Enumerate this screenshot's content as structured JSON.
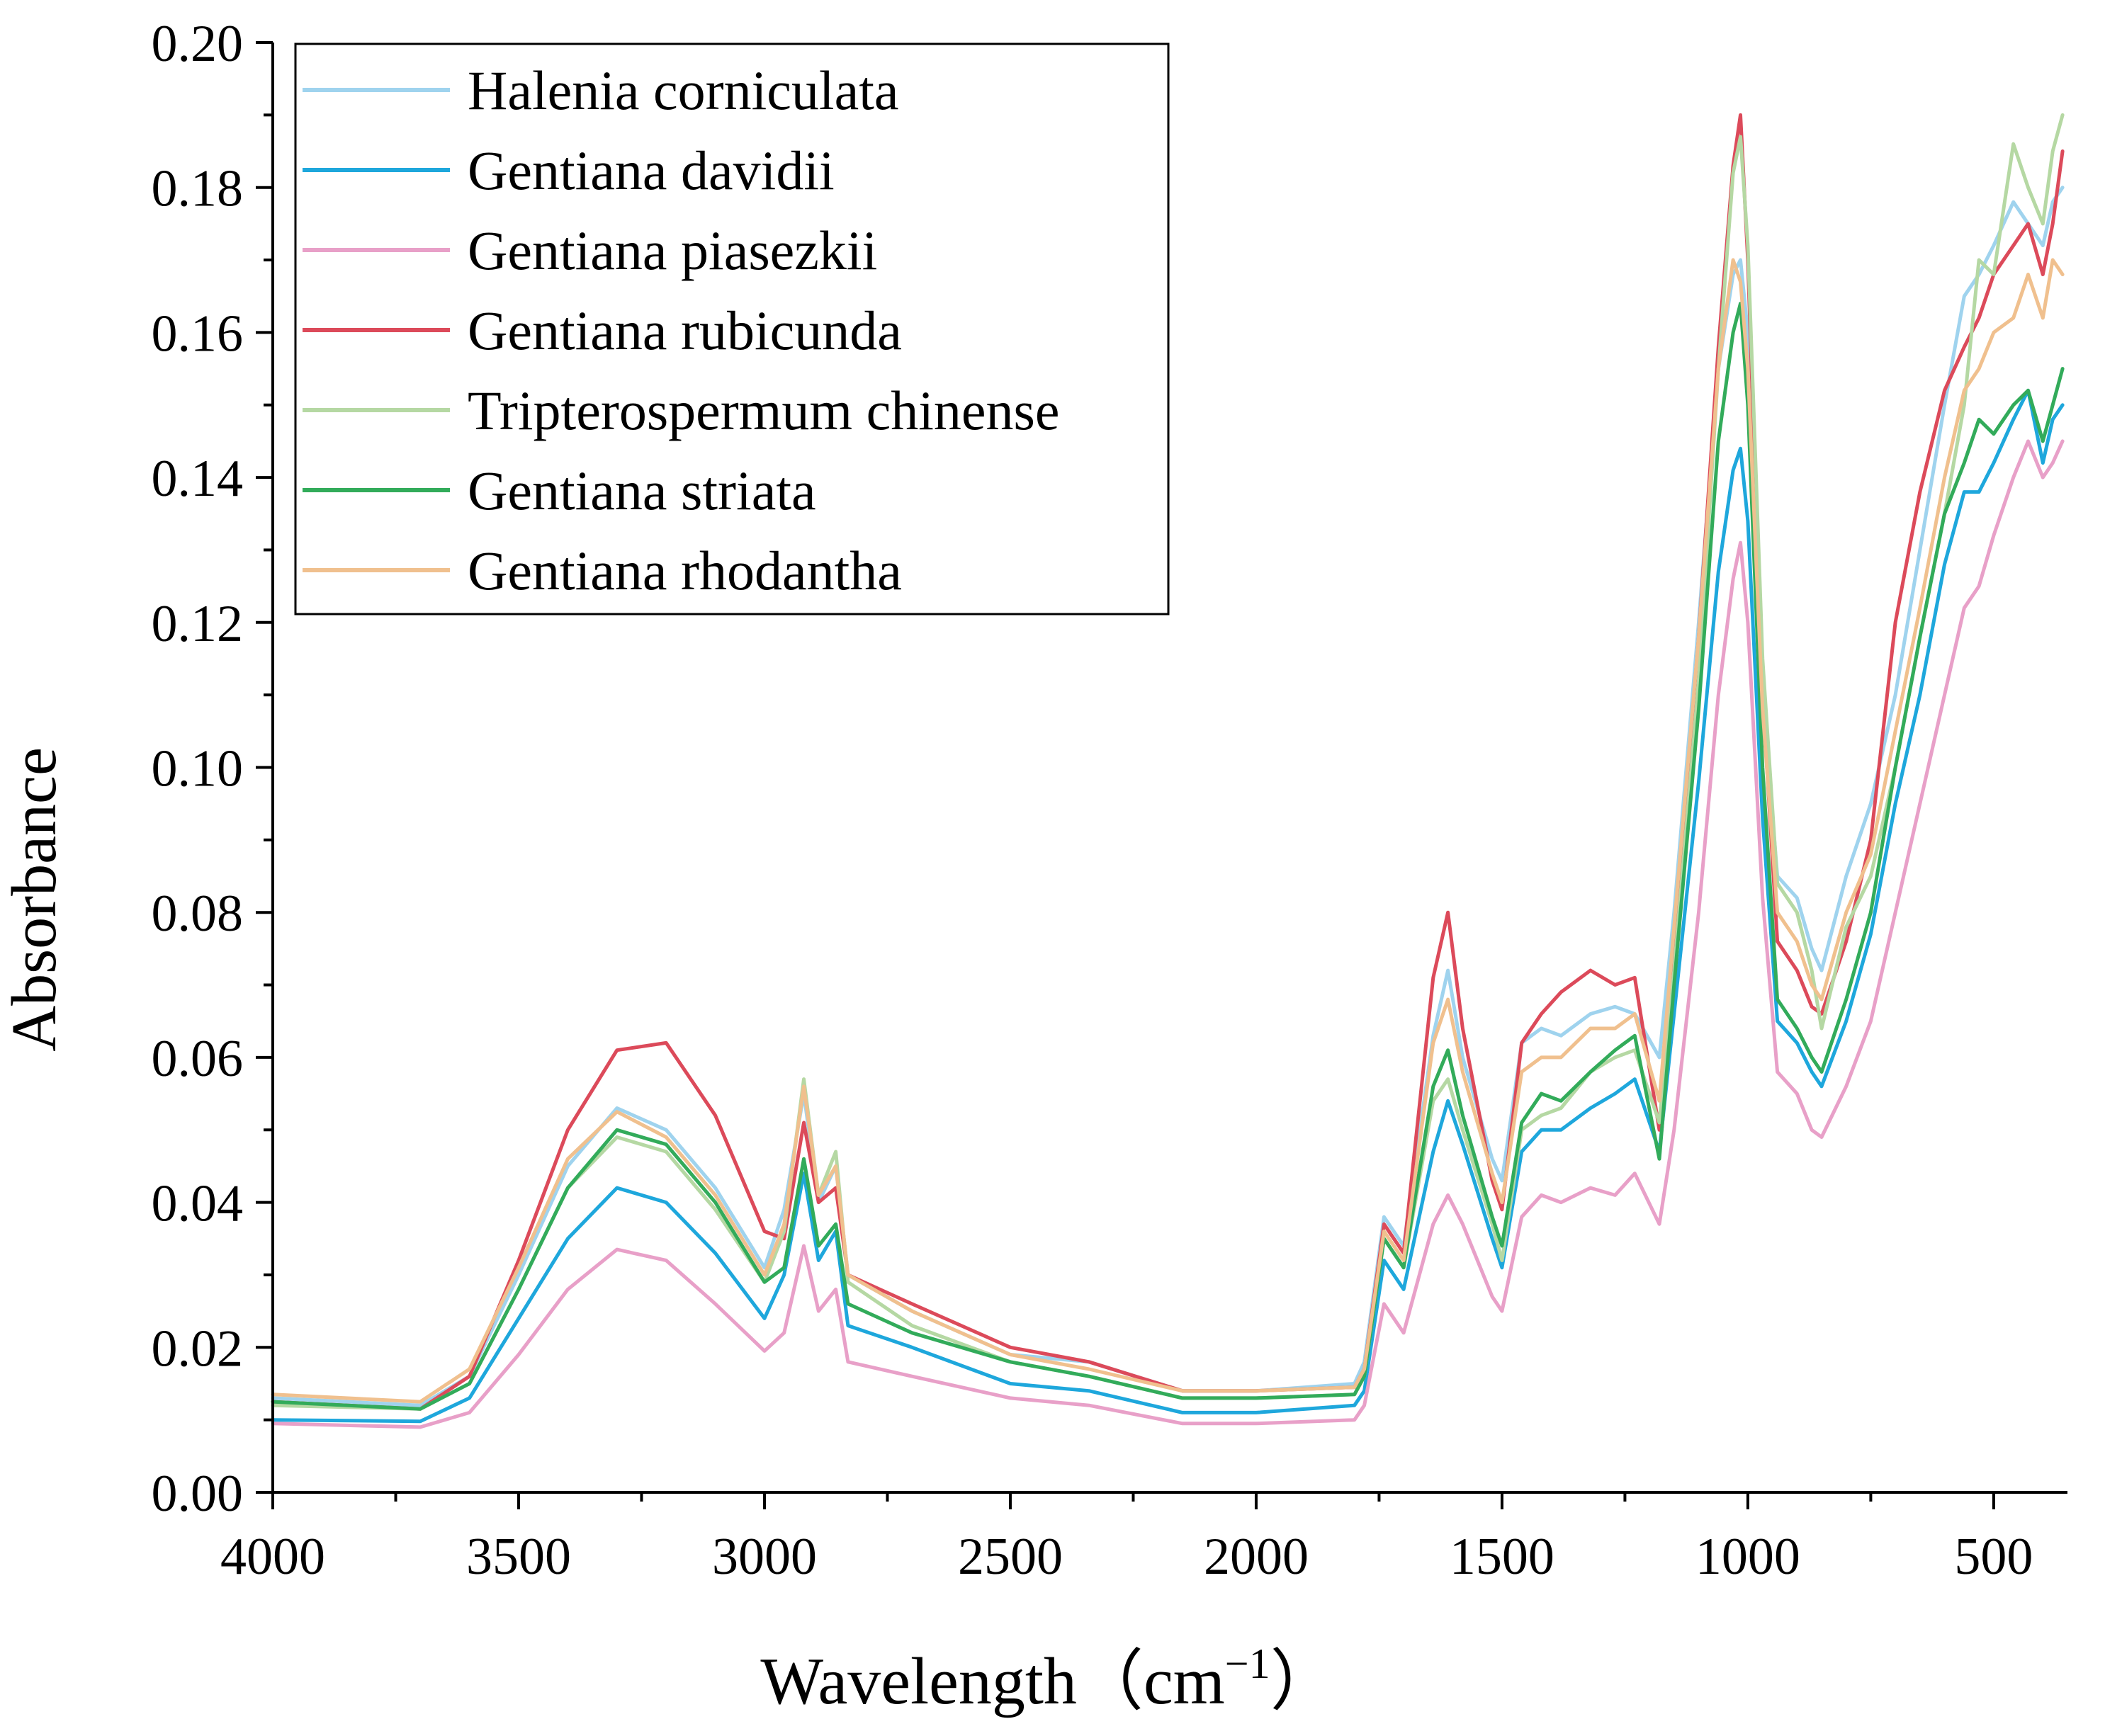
{
  "chart_data": {
    "type": "line",
    "title": "",
    "xlabel": "Wavelength",
    "xlabel_unit": "（cm",
    "xlabel_exp": "−1",
    "xlabel_close": "）",
    "ylabel": "Absorbance",
    "xlim": [
      4000,
      350
    ],
    "ylim": [
      0,
      0.2
    ],
    "x_reversed": true,
    "xticks": [
      4000,
      3500,
      3000,
      2500,
      2000,
      1500,
      1000,
      500
    ],
    "xtick_labels": [
      "4000",
      "3500",
      "3000",
      "2500",
      "2000",
      "1500",
      "1000",
      "500"
    ],
    "yticks": [
      0,
      0.02,
      0.04,
      0.06,
      0.08,
      0.1,
      0.12,
      0.14,
      0.16,
      0.18,
      0.2
    ],
    "ytick_labels": [
      "0.00",
      "0.02",
      "0.04",
      "0.06",
      "0.08",
      "0.10",
      "0.12",
      "0.14",
      "0.16",
      "0.18",
      "0.20"
    ],
    "legend_position": "top-left",
    "grid": false,
    "x": [
      4000,
      3700,
      3600,
      3500,
      3400,
      3300,
      3200,
      3100,
      3000,
      2960,
      2920,
      2890,
      2855,
      2830,
      2700,
      2500,
      2340,
      2150,
      2000,
      1800,
      1780,
      1740,
      1700,
      1640,
      1610,
      1580,
      1520,
      1500,
      1460,
      1420,
      1380,
      1320,
      1270,
      1230,
      1180,
      1150,
      1100,
      1060,
      1030,
      1015,
      1000,
      970,
      940,
      900,
      870,
      850,
      800,
      750,
      700,
      650,
      600,
      560,
      530,
      500,
      460,
      430,
      400,
      380,
      360
    ],
    "series": [
      {
        "name": "Halenia corniculata",
        "color": "#9fd3ee",
        "values": [
          0.013,
          0.012,
          0.016,
          0.03,
          0.045,
          0.053,
          0.05,
          0.042,
          0.031,
          0.039,
          0.055,
          0.04,
          0.045,
          0.03,
          0.025,
          0.019,
          0.018,
          0.014,
          0.014,
          0.015,
          0.018,
          0.038,
          0.034,
          0.063,
          0.072,
          0.06,
          0.046,
          0.043,
          0.062,
          0.064,
          0.063,
          0.066,
          0.067,
          0.066,
          0.06,
          0.08,
          0.12,
          0.155,
          0.168,
          0.17,
          0.16,
          0.11,
          0.085,
          0.082,
          0.075,
          0.072,
          0.085,
          0.095,
          0.11,
          0.13,
          0.15,
          0.165,
          0.168,
          0.172,
          0.178,
          0.175,
          0.172,
          0.178,
          0.18
        ]
      },
      {
        "name": "Gentiana davidii",
        "color": "#1ea7dc",
        "values": [
          0.01,
          0.0098,
          0.013,
          0.024,
          0.035,
          0.042,
          0.04,
          0.033,
          0.024,
          0.03,
          0.044,
          0.032,
          0.036,
          0.023,
          0.02,
          0.015,
          0.014,
          0.011,
          0.011,
          0.012,
          0.014,
          0.032,
          0.028,
          0.047,
          0.054,
          0.048,
          0.035,
          0.031,
          0.047,
          0.05,
          0.05,
          0.053,
          0.055,
          0.057,
          0.047,
          0.066,
          0.098,
          0.127,
          0.141,
          0.144,
          0.134,
          0.093,
          0.065,
          0.062,
          0.058,
          0.056,
          0.065,
          0.077,
          0.095,
          0.11,
          0.128,
          0.138,
          0.138,
          0.142,
          0.148,
          0.152,
          0.142,
          0.148,
          0.15
        ]
      },
      {
        "name": "Gentiana piasezkii",
        "color": "#e8a0c8",
        "values": [
          0.0095,
          0.009,
          0.011,
          0.019,
          0.028,
          0.0335,
          0.032,
          0.026,
          0.0195,
          0.022,
          0.034,
          0.025,
          0.028,
          0.018,
          0.016,
          0.013,
          0.012,
          0.0095,
          0.0095,
          0.01,
          0.012,
          0.026,
          0.022,
          0.037,
          0.041,
          0.037,
          0.027,
          0.025,
          0.038,
          0.041,
          0.04,
          0.042,
          0.041,
          0.044,
          0.037,
          0.05,
          0.08,
          0.11,
          0.126,
          0.131,
          0.12,
          0.082,
          0.058,
          0.055,
          0.05,
          0.049,
          0.056,
          0.065,
          0.08,
          0.095,
          0.11,
          0.122,
          0.125,
          0.132,
          0.14,
          0.145,
          0.14,
          0.142,
          0.145
        ]
      },
      {
        "name": "Gentiana rubicunda",
        "color": "#dc4a5a",
        "values": [
          0.0125,
          0.0115,
          0.016,
          0.032,
          0.05,
          0.061,
          0.062,
          0.052,
          0.036,
          0.035,
          0.051,
          0.04,
          0.042,
          0.03,
          0.026,
          0.02,
          0.018,
          0.014,
          0.014,
          0.0145,
          0.017,
          0.037,
          0.033,
          0.071,
          0.08,
          0.064,
          0.043,
          0.039,
          0.062,
          0.066,
          0.069,
          0.072,
          0.07,
          0.071,
          0.05,
          0.076,
          0.118,
          0.158,
          0.183,
          0.19,
          0.17,
          0.11,
          0.076,
          0.072,
          0.067,
          0.066,
          0.076,
          0.09,
          0.12,
          0.138,
          0.152,
          0.158,
          0.162,
          0.168,
          0.172,
          0.175,
          0.168,
          0.175,
          0.185
        ]
      },
      {
        "name": "Tripterospermum chinense",
        "color": "#b5d8a3",
        "values": [
          0.012,
          0.0115,
          0.015,
          0.028,
          0.042,
          0.049,
          0.047,
          0.039,
          0.029,
          0.036,
          0.057,
          0.041,
          0.047,
          0.029,
          0.023,
          0.018,
          0.016,
          0.013,
          0.013,
          0.0135,
          0.016,
          0.035,
          0.031,
          0.054,
          0.057,
          0.05,
          0.037,
          0.032,
          0.05,
          0.052,
          0.053,
          0.058,
          0.06,
          0.061,
          0.051,
          0.072,
          0.112,
          0.155,
          0.182,
          0.187,
          0.172,
          0.115,
          0.084,
          0.08,
          0.072,
          0.064,
          0.078,
          0.085,
          0.1,
          0.118,
          0.135,
          0.15,
          0.17,
          0.168,
          0.186,
          0.18,
          0.175,
          0.185,
          0.19
        ]
      },
      {
        "name": "Gentiana striata",
        "color": "#32ab5a",
        "values": [
          0.0125,
          0.0115,
          0.015,
          0.028,
          0.042,
          0.05,
          0.048,
          0.04,
          0.029,
          0.031,
          0.046,
          0.034,
          0.037,
          0.026,
          0.022,
          0.018,
          0.016,
          0.013,
          0.013,
          0.0135,
          0.016,
          0.035,
          0.031,
          0.056,
          0.061,
          0.052,
          0.038,
          0.034,
          0.051,
          0.055,
          0.054,
          0.058,
          0.061,
          0.063,
          0.046,
          0.07,
          0.108,
          0.145,
          0.16,
          0.164,
          0.15,
          0.1,
          0.068,
          0.064,
          0.06,
          0.058,
          0.068,
          0.08,
          0.1,
          0.118,
          0.135,
          0.142,
          0.148,
          0.146,
          0.15,
          0.152,
          0.145,
          0.15,
          0.155
        ]
      },
      {
        "name": "Gentiana rhodantha",
        "color": "#f0c08e",
        "values": [
          0.0135,
          0.0125,
          0.017,
          0.031,
          0.046,
          0.0525,
          0.049,
          0.041,
          0.03,
          0.037,
          0.056,
          0.041,
          0.045,
          0.03,
          0.025,
          0.019,
          0.017,
          0.014,
          0.014,
          0.0145,
          0.017,
          0.036,
          0.032,
          0.062,
          0.068,
          0.058,
          0.044,
          0.04,
          0.058,
          0.06,
          0.06,
          0.064,
          0.064,
          0.066,
          0.054,
          0.078,
          0.118,
          0.155,
          0.17,
          0.167,
          0.155,
          0.108,
          0.08,
          0.076,
          0.07,
          0.068,
          0.08,
          0.088,
          0.105,
          0.122,
          0.14,
          0.152,
          0.155,
          0.16,
          0.162,
          0.168,
          0.162,
          0.17,
          0.168
        ]
      }
    ]
  }
}
